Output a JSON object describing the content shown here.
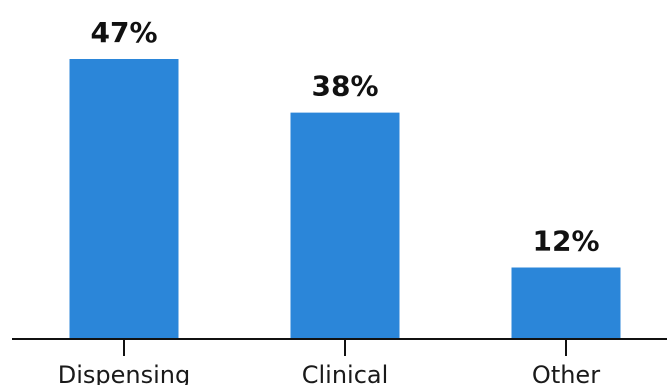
{
  "chart_data": {
    "type": "bar",
    "categories": [
      "Dispensing",
      "Clinical",
      "Other"
    ],
    "values": [
      47,
      38,
      12
    ],
    "value_labels": [
      "47%",
      "38%",
      "12%"
    ],
    "unit": "%",
    "title": "",
    "xlabel": "",
    "ylabel": "",
    "ylim": [
      0,
      47
    ],
    "grid": false,
    "legend": "none",
    "bar_color": "#2b86d9",
    "axis_color": "#111111"
  }
}
